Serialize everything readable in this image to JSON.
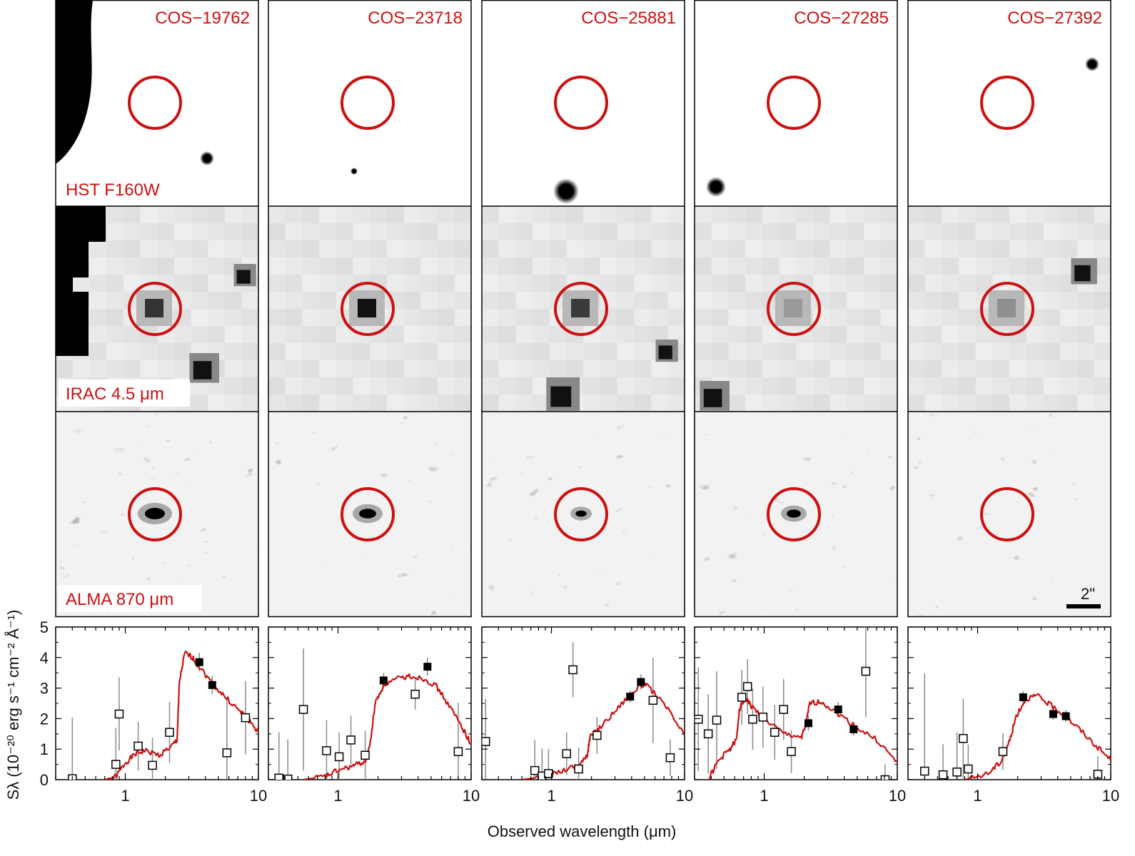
{
  "columns": [
    {
      "name": "COS−19762",
      "hst_label": "HST F160W",
      "irac_label": "IRAC 4.5 μm",
      "alma_label": "ALMA 870 μm"
    },
    {
      "name": "COS−23718"
    },
    {
      "name": "COS−25881"
    },
    {
      "name": "COS−27285"
    },
    {
      "name": "COS−27392"
    }
  ],
  "scale_bar": {
    "label": "2\""
  },
  "axes": {
    "ylabel_html": "Sλ (10⁻²⁰ erg s⁻¹ cm⁻² Å⁻¹)",
    "xlabel": "Observed wavelength (μm)",
    "y_ticks": [
      "0",
      "1",
      "2",
      "3",
      "4",
      "5"
    ],
    "x_ticks": [
      "1",
      "10"
    ]
  },
  "colors": {
    "accent": "#cc1111",
    "errorbar": "#8a8a8a",
    "frame": "#000000"
  },
  "chart_data": [
    {
      "type": "scatter",
      "title": "COS−19762",
      "xscale": "log",
      "xlim": [
        0.3,
        10
      ],
      "ylim": [
        0,
        5
      ],
      "open_points": [
        [
          0.4,
          0.03
        ],
        [
          0.85,
          0.5
        ],
        [
          0.9,
          2.15
        ],
        [
          1.25,
          1.1
        ],
        [
          1.6,
          0.47
        ],
        [
          2.15,
          1.55
        ],
        [
          5.8,
          0.88
        ],
        [
          8.0,
          2.03
        ]
      ],
      "open_errors": [
        2.0,
        1.2,
        1.2,
        0.8,
        0.9,
        1.0,
        1.8,
        1.2
      ],
      "filled_points": [
        [
          3.6,
          3.85
        ],
        [
          4.5,
          3.1
        ]
      ],
      "filled_errors": [
        0.3,
        0.3
      ],
      "sed": [
        [
          0.7,
          0
        ],
        [
          0.85,
          0.1
        ],
        [
          1.0,
          0.55
        ],
        [
          1.2,
          0.85
        ],
        [
          1.4,
          0.95
        ],
        [
          1.8,
          0.8
        ],
        [
          2.3,
          1.15
        ],
        [
          2.45,
          1.3
        ],
        [
          2.55,
          3.2
        ],
        [
          2.8,
          4.15
        ],
        [
          3.2,
          4.0
        ],
        [
          3.6,
          3.7
        ],
        [
          4.5,
          3.15
        ],
        [
          5.5,
          2.75
        ],
        [
          7.0,
          2.3
        ],
        [
          8.5,
          1.95
        ],
        [
          10,
          1.55
        ]
      ]
    },
    {
      "type": "scatter",
      "title": "COS−23718",
      "xscale": "log",
      "xlim": [
        0.3,
        10
      ],
      "ylim": [
        0,
        5
      ],
      "open_points": [
        [
          0.36,
          0.05
        ],
        [
          0.42,
          0.02
        ],
        [
          0.55,
          2.3
        ],
        [
          0.82,
          0.95
        ],
        [
          1.02,
          0.75
        ],
        [
          1.25,
          1.3
        ],
        [
          1.6,
          0.8
        ],
        [
          3.8,
          2.8
        ],
        [
          8.0,
          0.92
        ]
      ],
      "open_errors": [
        1.5,
        1.3,
        2.0,
        1.0,
        0.8,
        0.8,
        0.8,
        0.5,
        1.6
      ],
      "filled_points": [
        [
          2.2,
          3.25
        ],
        [
          4.7,
          3.7
        ]
      ],
      "filled_errors": [
        0.25,
        0.3
      ],
      "sed": [
        [
          0.55,
          0
        ],
        [
          0.8,
          0.1
        ],
        [
          1.0,
          0.3
        ],
        [
          1.3,
          0.45
        ],
        [
          1.6,
          0.6
        ],
        [
          1.75,
          1.2
        ],
        [
          1.9,
          2.5
        ],
        [
          2.2,
          3.1
        ],
        [
          2.8,
          3.3
        ],
        [
          3.5,
          3.4
        ],
        [
          4.5,
          3.3
        ],
        [
          5.5,
          3.05
        ],
        [
          7.0,
          2.35
        ],
        [
          8.5,
          1.75
        ],
        [
          10,
          1.15
        ]
      ]
    },
    {
      "type": "scatter",
      "title": "COS−25881",
      "xscale": "log",
      "xlim": [
        0.3,
        10
      ],
      "ylim": [
        0,
        5
      ],
      "open_points": [
        [
          0.32,
          1.25
        ],
        [
          0.75,
          0.3
        ],
        [
          0.85,
          0.12
        ],
        [
          0.95,
          0.2
        ],
        [
          1.3,
          0.85
        ],
        [
          1.45,
          3.6
        ],
        [
          1.6,
          0.35
        ],
        [
          2.2,
          1.45
        ],
        [
          5.8,
          2.6
        ],
        [
          7.8,
          0.72
        ]
      ],
      "open_errors": [
        1.4,
        1.0,
        0.9,
        0.8,
        0.7,
        0.9,
        0.7,
        0.6,
        1.4,
        0.6
      ],
      "filled_points": [
        [
          3.9,
          2.72
        ],
        [
          4.7,
          3.2
        ]
      ],
      "filled_errors": [
        0.2,
        0.25
      ],
      "sed": [
        [
          0.6,
          0
        ],
        [
          0.9,
          0.1
        ],
        [
          1.2,
          0.3
        ],
        [
          1.6,
          0.5
        ],
        [
          1.85,
          0.75
        ],
        [
          1.95,
          1.4
        ],
        [
          2.3,
          1.7
        ],
        [
          3.0,
          2.25
        ],
        [
          4.0,
          2.85
        ],
        [
          5.0,
          3.15
        ],
        [
          6.0,
          2.8
        ],
        [
          7.5,
          2.3
        ],
        [
          10,
          1.45
        ]
      ]
    },
    {
      "type": "scatter",
      "title": "COS−27285",
      "xscale": "log",
      "xlim": [
        0.3,
        10
      ],
      "ylim": [
        0,
        5
      ],
      "open_points": [
        [
          0.32,
          1.98
        ],
        [
          0.38,
          1.5
        ],
        [
          0.44,
          1.95
        ],
        [
          0.68,
          2.7
        ],
        [
          0.75,
          3.05
        ],
        [
          0.82,
          1.98
        ],
        [
          0.98,
          2.05
        ],
        [
          1.2,
          1.55
        ],
        [
          1.4,
          2.3
        ],
        [
          1.6,
          0.92
        ],
        [
          5.8,
          3.55
        ],
        [
          8.1,
          0.0
        ]
      ],
      "open_errors": [
        1.7,
        1.3,
        1.6,
        0.9,
        0.9,
        1.0,
        1.0,
        0.9,
        1.0,
        0.7,
        1.5,
        0.5
      ],
      "filled_points": [
        [
          2.15,
          1.85
        ],
        [
          3.6,
          2.3
        ],
        [
          4.7,
          1.65
        ]
      ],
      "filled_errors": [
        0.25,
        0.25,
        0.2
      ],
      "sed": [
        [
          0.38,
          0
        ],
        [
          0.45,
          0.6
        ],
        [
          0.55,
          1.0
        ],
        [
          0.62,
          1.3
        ],
        [
          0.65,
          2.3
        ],
        [
          0.72,
          2.7
        ],
        [
          0.8,
          2.4
        ],
        [
          1.0,
          2.0
        ],
        [
          1.4,
          1.5
        ],
        [
          1.9,
          1.4
        ],
        [
          2.05,
          1.75
        ],
        [
          2.2,
          2.5
        ],
        [
          2.7,
          2.55
        ],
        [
          3.5,
          2.2
        ],
        [
          5.0,
          1.7
        ],
        [
          7.0,
          1.3
        ],
        [
          10,
          0.55
        ]
      ]
    },
    {
      "type": "scatter",
      "title": "COS−27392",
      "xscale": "log",
      "xlim": [
        0.3,
        10
      ],
      "ylim": [
        0,
        5
      ],
      "open_points": [
        [
          0.4,
          0.28
        ],
        [
          0.55,
          0.16
        ],
        [
          0.7,
          0.25
        ],
        [
          0.78,
          1.35
        ],
        [
          0.85,
          0.35
        ],
        [
          1.55,
          0.92
        ],
        [
          8.0,
          0.18
        ]
      ],
      "open_errors": [
        3.2,
        1.0,
        1.3,
        1.3,
        0.8,
        0.6,
        0.6
      ],
      "filled_points": [
        [
          2.2,
          2.7
        ],
        [
          3.7,
          2.15
        ],
        [
          4.6,
          2.08
        ]
      ],
      "filled_errors": [
        0.2,
        0.2,
        0.2
      ],
      "sed": [
        [
          0.8,
          0
        ],
        [
          1.2,
          0.2
        ],
        [
          1.5,
          0.6
        ],
        [
          1.75,
          1.3
        ],
        [
          1.95,
          2.1
        ],
        [
          2.3,
          2.65
        ],
        [
          2.8,
          2.75
        ],
        [
          3.5,
          2.45
        ],
        [
          4.5,
          2.1
        ],
        [
          6.0,
          1.6
        ],
        [
          8.0,
          1.05
        ],
        [
          10,
          0.65
        ]
      ]
    }
  ]
}
